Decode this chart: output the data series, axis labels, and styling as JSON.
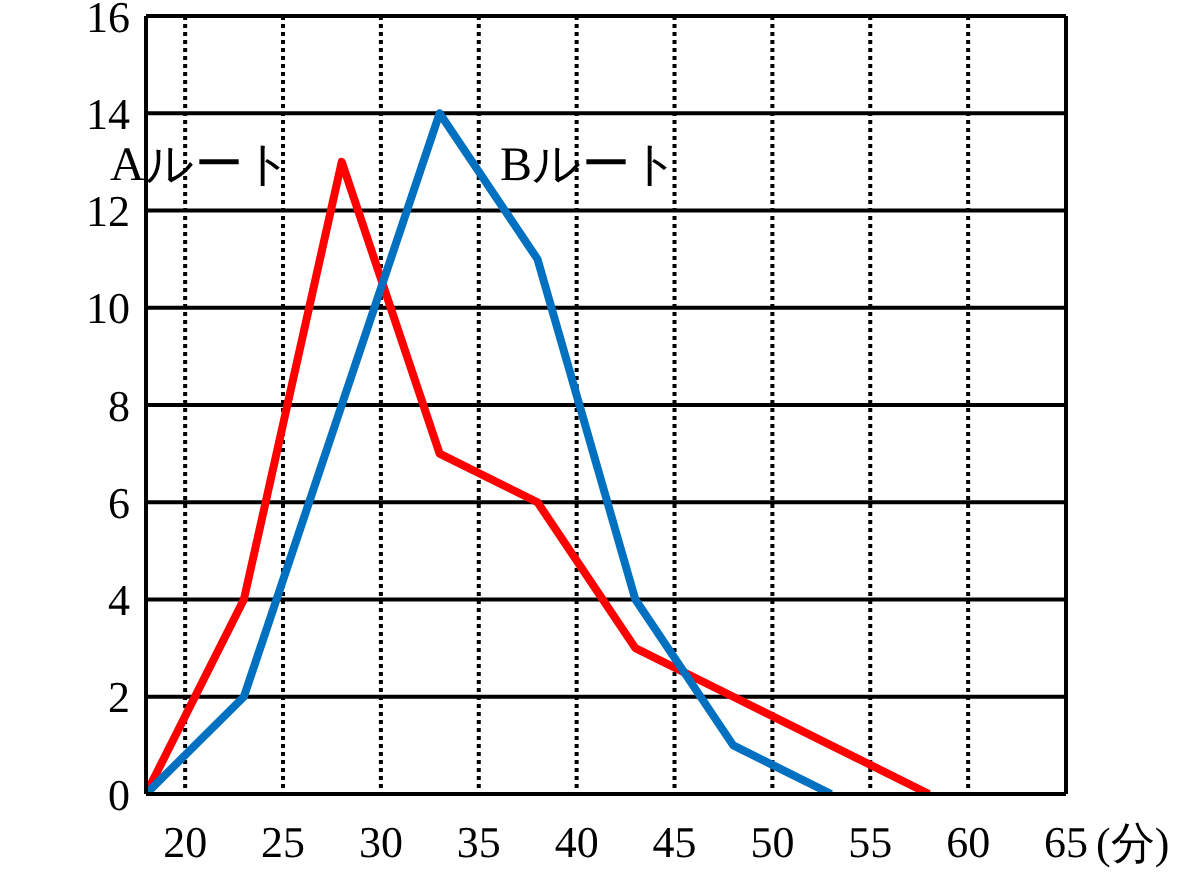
{
  "chart_data": {
    "type": "line",
    "xlabel": "(分)",
    "x": [
      18,
      23,
      28,
      33,
      38,
      43,
      48,
      53,
      58
    ],
    "series": [
      {
        "name": "Aルート",
        "color": "#ff0000",
        "values": [
          0,
          4,
          13,
          7,
          6,
          3,
          2,
          1,
          0
        ]
      },
      {
        "name": "Bルート",
        "color": "#0070c0",
        "values": [
          0,
          2,
          8,
          14,
          11,
          4,
          1,
          0,
          null
        ]
      }
    ],
    "xlim": [
      18,
      65
    ],
    "xticks": [
      20,
      25,
      30,
      35,
      40,
      45,
      50,
      55,
      60,
      65
    ],
    "ylim": [
      0,
      16
    ],
    "yticks": [
      0,
      2,
      4,
      6,
      8,
      10,
      12,
      14,
      16
    ],
    "grid": true,
    "marker": "none",
    "line_style": "solid",
    "legend": false
  }
}
